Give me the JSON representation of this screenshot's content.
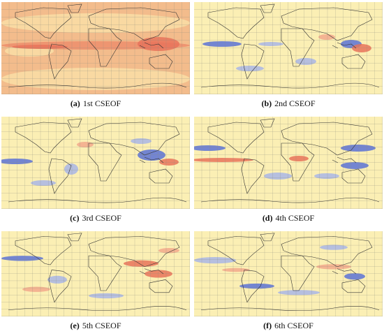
{
  "panels": [
    {
      "label": "(a)",
      "title": "1st CSEOF"
    },
    {
      "label": "(b)",
      "title": "2nd CSEOF"
    },
    {
      "label": "(c)",
      "title": "3rd CSEOF"
    },
    {
      "label": "(d)",
      "title": "4th CSEOF"
    },
    {
      "label": "(e)",
      "title": "5th CSEOF"
    },
    {
      "label": "(f)",
      "title": "6th CSEOF"
    }
  ]
}
